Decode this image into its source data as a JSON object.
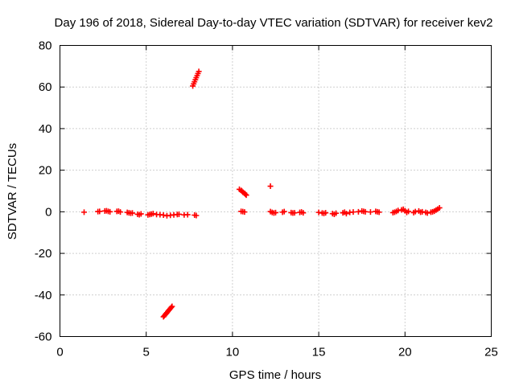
{
  "chart_data": {
    "type": "scatter",
    "title": "Day 196 of 2018, Sidereal Day-to-day VTEC variation (SDTVAR) for receiver kev2",
    "xlabel": "GPS time / hours",
    "ylabel": "SDTVAR / TECUs",
    "xlim": [
      0,
      25
    ],
    "ylim": [
      -60,
      80
    ],
    "xticks": [
      0,
      5,
      10,
      15,
      20,
      25
    ],
    "yticks": [
      -60,
      -40,
      -20,
      0,
      20,
      40,
      60,
      80
    ],
    "grid": true,
    "marker": "plus",
    "color": "#ff0000",
    "series": [
      {
        "name": "SDTVAR",
        "points": [
          [
            1.4,
            -0.2
          ],
          [
            2.2,
            0.1
          ],
          [
            2.3,
            0.2
          ],
          [
            2.6,
            0.4
          ],
          [
            2.7,
            0.5
          ],
          [
            2.8,
            0.2
          ],
          [
            2.9,
            0.0
          ],
          [
            3.3,
            0.2
          ],
          [
            3.4,
            0.3
          ],
          [
            3.5,
            -0.1
          ],
          [
            3.9,
            -0.3
          ],
          [
            4.0,
            -0.5
          ],
          [
            4.1,
            -0.7
          ],
          [
            4.2,
            -0.6
          ],
          [
            4.5,
            -1.2
          ],
          [
            4.6,
            -1.4
          ],
          [
            4.7,
            -1.0
          ],
          [
            5.1,
            -1.5
          ],
          [
            5.2,
            -1.3
          ],
          [
            5.3,
            -1.1
          ],
          [
            5.4,
            -0.9
          ],
          [
            5.6,
            -1.3
          ],
          [
            5.8,
            -1.4
          ],
          [
            6.0,
            -1.6
          ],
          [
            6.2,
            -1.9
          ],
          [
            6.4,
            -1.7
          ],
          [
            6.6,
            -1.5
          ],
          [
            6.8,
            -1.3
          ],
          [
            6.9,
            -1.2
          ],
          [
            7.2,
            -1.5
          ],
          [
            7.4,
            -1.4
          ],
          [
            7.8,
            -1.6
          ],
          [
            7.9,
            -1.8
          ],
          [
            6.0,
            -50.5
          ],
          [
            6.05,
            -50.0
          ],
          [
            6.1,
            -49.5
          ],
          [
            6.15,
            -49.0
          ],
          [
            6.2,
            -48.5
          ],
          [
            6.25,
            -48.0
          ],
          [
            6.3,
            -47.5
          ],
          [
            6.35,
            -47.0
          ],
          [
            6.4,
            -46.5
          ],
          [
            6.45,
            -46.0
          ],
          [
            6.5,
            -45.5
          ],
          [
            7.7,
            60.5
          ],
          [
            7.75,
            61.5
          ],
          [
            7.8,
            62.5
          ],
          [
            7.85,
            63.5
          ],
          [
            7.9,
            64.5
          ],
          [
            7.95,
            65.5
          ],
          [
            8.0,
            66.5
          ],
          [
            8.05,
            67.5
          ],
          [
            10.4,
            10.8
          ],
          [
            10.5,
            10.3
          ],
          [
            10.55,
            9.9
          ],
          [
            10.6,
            9.4
          ],
          [
            10.7,
            8.9
          ],
          [
            10.75,
            8.4
          ],
          [
            10.8,
            8.0
          ],
          [
            10.5,
            0.2
          ],
          [
            10.6,
            0.1
          ],
          [
            10.7,
            -0.1
          ],
          [
            12.2,
            12.3
          ],
          [
            12.2,
            0.1
          ],
          [
            12.3,
            -0.3
          ],
          [
            12.4,
            -0.6
          ],
          [
            12.5,
            -0.4
          ],
          [
            12.9,
            -0.2
          ],
          [
            13.0,
            0.1
          ],
          [
            13.4,
            -0.4
          ],
          [
            13.5,
            -0.6
          ],
          [
            13.6,
            -0.5
          ],
          [
            13.9,
            -0.3
          ],
          [
            14.0,
            -0.1
          ],
          [
            14.1,
            -0.5
          ],
          [
            15.0,
            -0.3
          ],
          [
            15.2,
            -0.6
          ],
          [
            15.3,
            -0.8
          ],
          [
            15.4,
            -0.5
          ],
          [
            15.8,
            -0.9
          ],
          [
            15.9,
            -1.2
          ],
          [
            16.0,
            -0.7
          ],
          [
            16.4,
            -0.5
          ],
          [
            16.5,
            -0.2
          ],
          [
            16.6,
            -0.9
          ],
          [
            16.8,
            -0.3
          ],
          [
            17.0,
            -0.1
          ],
          [
            17.3,
            0.0
          ],
          [
            17.5,
            0.4
          ],
          [
            17.6,
            0.2
          ],
          [
            17.7,
            0.0
          ],
          [
            18.0,
            -0.1
          ],
          [
            18.3,
            0.2
          ],
          [
            18.4,
            0.0
          ],
          [
            18.5,
            -0.2
          ],
          [
            19.3,
            -0.4
          ],
          [
            19.4,
            -0.2
          ],
          [
            19.5,
            0.2
          ],
          [
            19.6,
            0.6
          ],
          [
            19.8,
            0.9
          ],
          [
            19.9,
            1.2
          ],
          [
            20.0,
            0.5
          ],
          [
            20.1,
            -0.3
          ],
          [
            20.2,
            0.2
          ],
          [
            20.5,
            -0.4
          ],
          [
            20.6,
            0.1
          ],
          [
            20.8,
            0.4
          ],
          [
            20.9,
            -0.2
          ],
          [
            21.0,
            0.0
          ],
          [
            21.2,
            -0.3
          ],
          [
            21.3,
            -0.6
          ],
          [
            21.5,
            -0.2
          ],
          [
            21.6,
            0.0
          ],
          [
            21.7,
            0.3
          ],
          [
            21.8,
            0.8
          ],
          [
            21.9,
            1.3
          ],
          [
            22.0,
            1.9
          ]
        ]
      }
    ]
  }
}
